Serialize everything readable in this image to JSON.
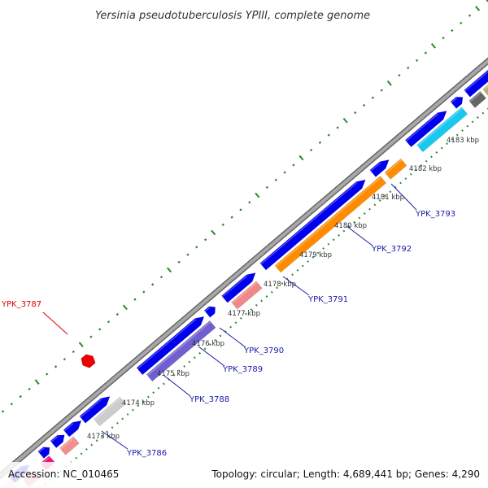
{
  "title": "Yersinia pseudotuberculosis YPIII, complete genome",
  "footer": {
    "accession": "Accession: NC_010465",
    "summary": "Topology: circular; Length: 4,689,441 bp; Genes: 4,290"
  },
  "colors": {
    "backbone": "#999999",
    "backbone_edge": "#666666",
    "tick": "#2a8a2a",
    "gene_blue": "#0000ee",
    "label_blue": "#1a1aaa",
    "label_red": "#dd0000"
  },
  "kbp_ticks": [
    {
      "label": "4173 kbp"
    },
    {
      "label": "4174 kbp"
    },
    {
      "label": "4175 kbp"
    },
    {
      "label": "4176 kbp"
    },
    {
      "label": "4177 kbp"
    },
    {
      "label": "4178 kbp"
    },
    {
      "label": "4179 kbp"
    },
    {
      "label": "4180 kbp"
    },
    {
      "label": "4181 kbp"
    },
    {
      "label": "4182 kbp"
    },
    {
      "label": "4183 kbp"
    }
  ],
  "gene_labels": [
    {
      "name": "YPK_3786"
    },
    {
      "name": "YPK_3787"
    },
    {
      "name": "YPK_3788"
    },
    {
      "name": "YPK_3789"
    },
    {
      "name": "YPK_3790"
    },
    {
      "name": "YPK_3791"
    },
    {
      "name": "YPK_3792"
    },
    {
      "name": "YPK_3793"
    }
  ]
}
